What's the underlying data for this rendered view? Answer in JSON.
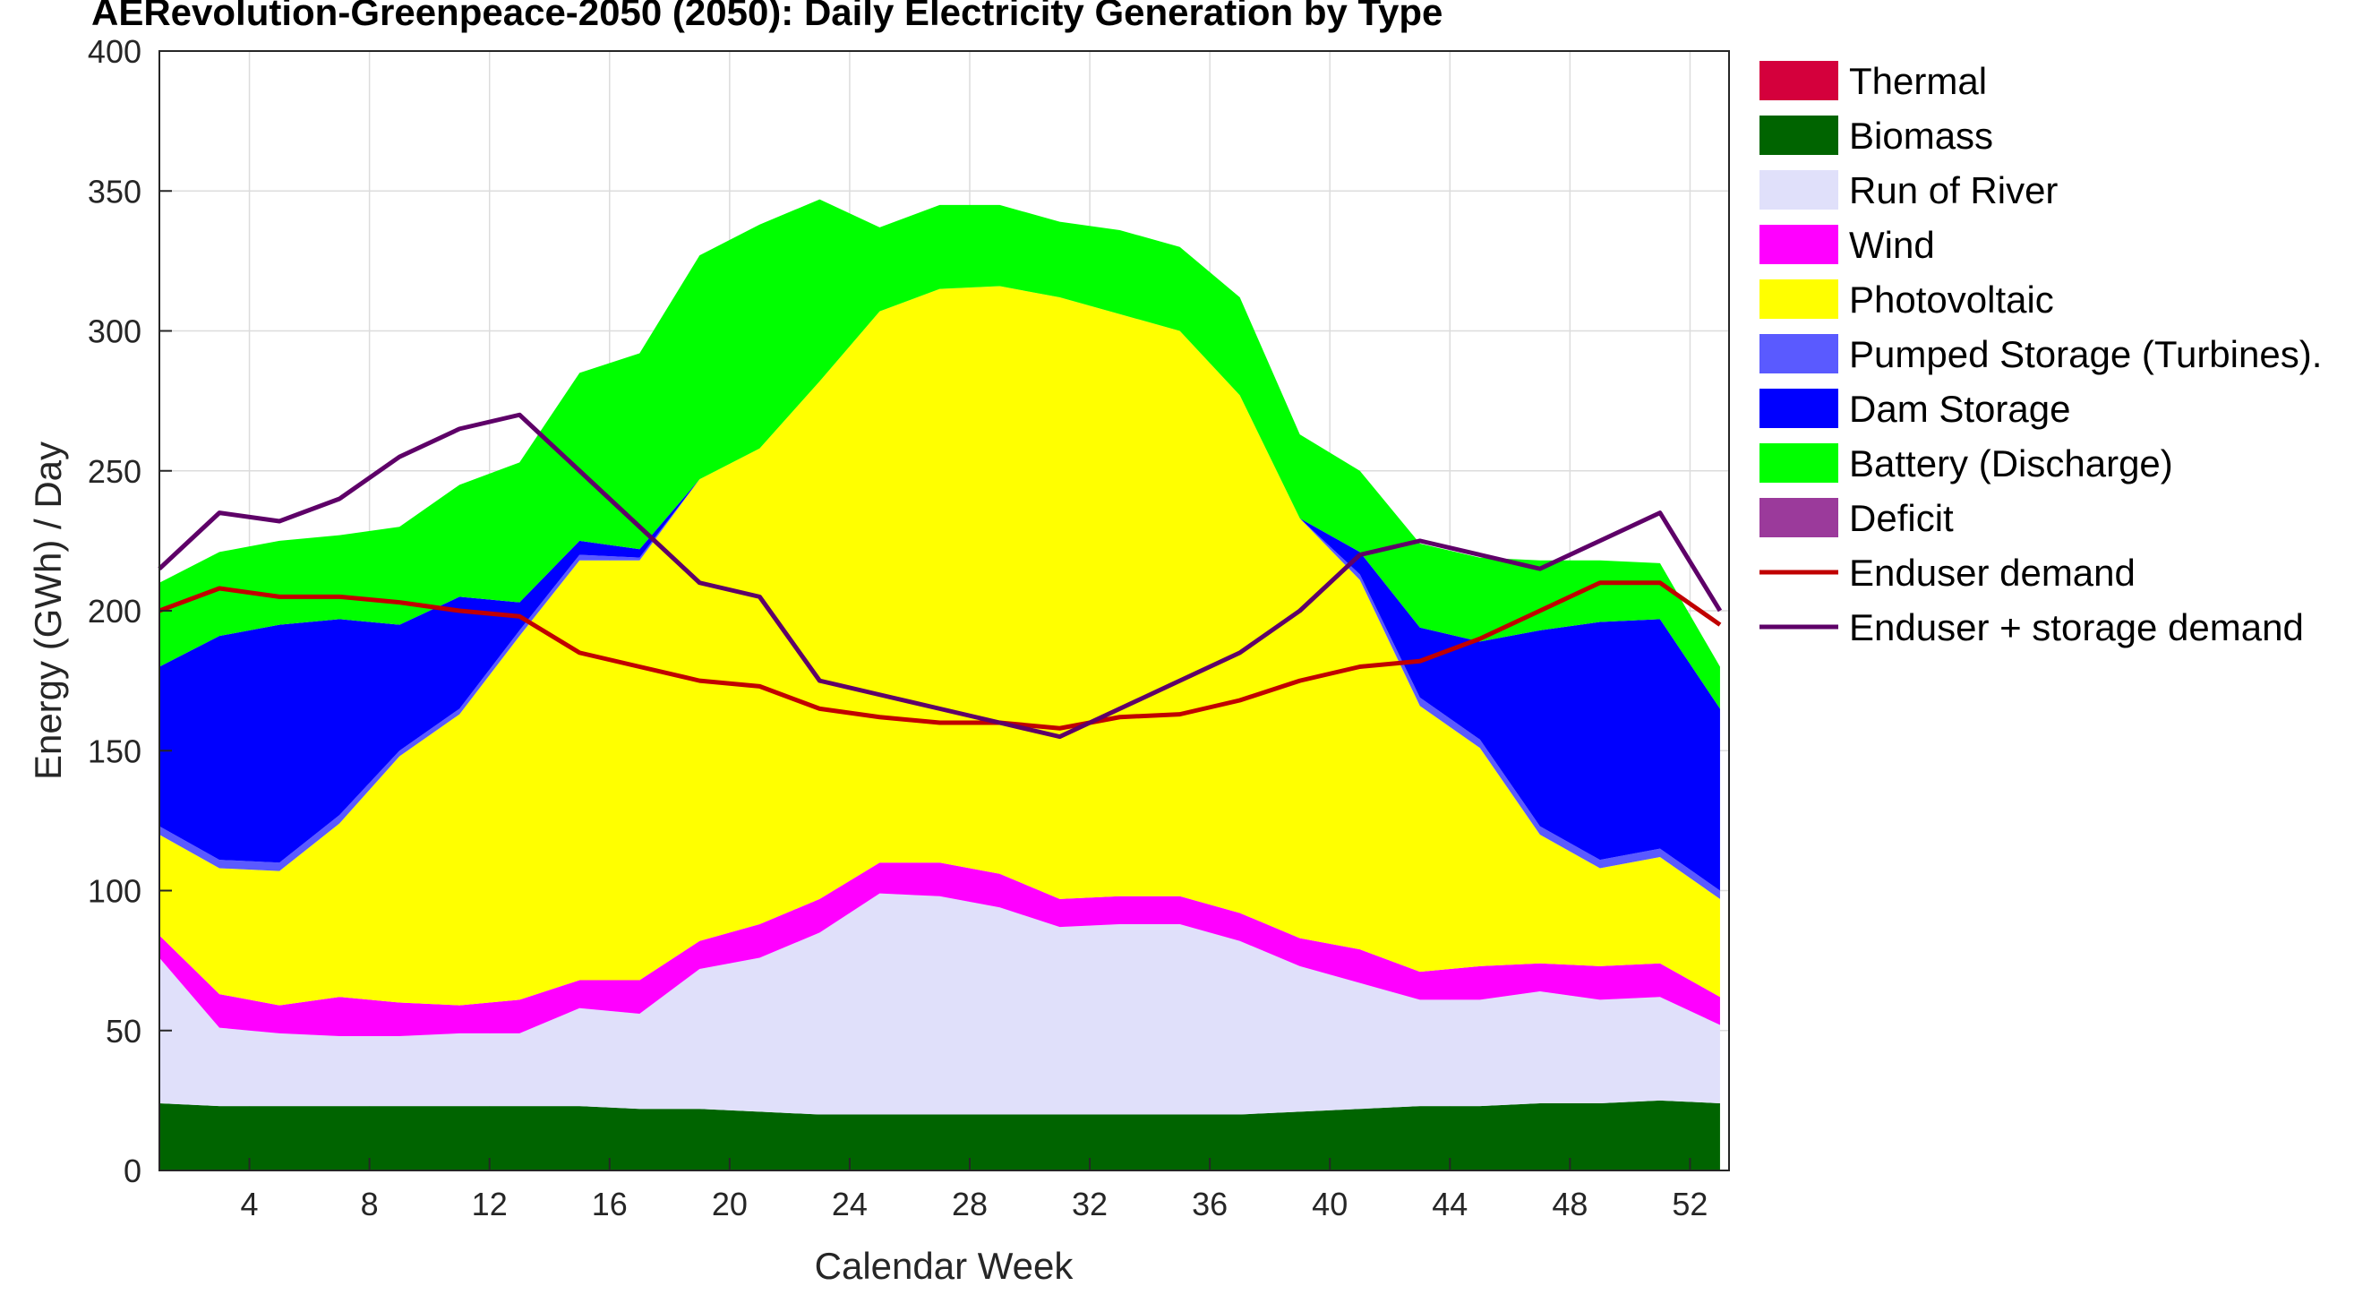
{
  "chart_data": {
    "type": "area",
    "title": "AERevolution-Greenpeace-2050 (2050): Daily Electricity Generation by Type",
    "xlabel": "Calendar Week",
    "ylabel": "Energy (GWh) / Day",
    "xlim": [
      1,
      53.3
    ],
    "ylim": [
      0,
      400
    ],
    "xticks": [
      4,
      8,
      12,
      16,
      20,
      24,
      28,
      32,
      36,
      40,
      44,
      48,
      52
    ],
    "yticks": [
      0,
      50,
      100,
      150,
      200,
      250,
      300,
      350,
      400
    ],
    "grid": true,
    "legend_position": "right",
    "x": [
      1,
      3,
      5,
      7,
      9,
      11,
      13,
      15,
      17,
      19,
      21,
      23,
      25,
      27,
      29,
      31,
      33,
      35,
      37,
      39,
      41,
      43,
      45,
      47,
      49,
      51,
      53
    ],
    "series": [
      {
        "name": "Thermal",
        "kind": "area",
        "color": "#d4003c",
        "values": [
          0,
          0,
          0,
          0,
          0,
          0,
          0,
          0,
          0,
          0,
          0,
          0,
          0,
          0,
          0,
          0,
          0,
          0,
          0,
          0,
          0,
          0,
          0,
          0,
          0,
          0,
          0
        ]
      },
      {
        "name": "Biomass",
        "kind": "area",
        "color": "#006400",
        "values": [
          24,
          23,
          23,
          23,
          23,
          23,
          23,
          23,
          22,
          22,
          21,
          20,
          20,
          20,
          20,
          20,
          20,
          20,
          20,
          21,
          22,
          23,
          23,
          24,
          24,
          25,
          24
        ]
      },
      {
        "name": "Run of River",
        "kind": "area",
        "color": "#e0e0fa",
        "values": [
          52,
          28,
          26,
          25,
          25,
          26,
          26,
          35,
          34,
          50,
          55,
          65,
          79,
          78,
          74,
          67,
          68,
          68,
          62,
          52,
          45,
          38,
          38,
          40,
          37,
          37,
          28
        ]
      },
      {
        "name": "Wind",
        "kind": "area",
        "color": "#ff00ff",
        "values": [
          8,
          12,
          10,
          14,
          12,
          10,
          12,
          10,
          12,
          10,
          12,
          12,
          11,
          12,
          12,
          10,
          10,
          10,
          10,
          10,
          12,
          10,
          12,
          10,
          12,
          12,
          10
        ]
      },
      {
        "name": "Photovoltaic",
        "kind": "area",
        "color": "#ffff00",
        "values": [
          36,
          45,
          48,
          62,
          88,
          104,
          130,
          150,
          150,
          165,
          170,
          185,
          197,
          205,
          210,
          215,
          208,
          202,
          185,
          150,
          132,
          95,
          78,
          46,
          35,
          38,
          35
        ]
      },
      {
        "name": "Pumped Storage (Turbines).",
        "kind": "area",
        "color": "#5a5aff",
        "values": [
          3,
          3,
          3,
          3,
          2,
          2,
          2,
          2,
          1,
          0,
          0,
          0,
          0,
          0,
          0,
          0,
          0,
          0,
          0,
          0,
          2,
          3,
          3,
          3,
          3,
          3,
          3
        ]
      },
      {
        "name": "Dam Storage",
        "kind": "area",
        "color": "#0000ff",
        "values": [
          57,
          80,
          85,
          70,
          45,
          40,
          10,
          5,
          3,
          0,
          0,
          0,
          0,
          0,
          0,
          0,
          0,
          0,
          0,
          0,
          8,
          25,
          35,
          70,
          85,
          82,
          65
        ]
      },
      {
        "name": "Battery (Discharge)",
        "kind": "area",
        "color": "#00ff00",
        "values": [
          30,
          30,
          30,
          30,
          35,
          40,
          50,
          60,
          70,
          80,
          80,
          65,
          30,
          30,
          29,
          27,
          30,
          30,
          35,
          30,
          29,
          30,
          30,
          25,
          22,
          20,
          15
        ]
      },
      {
        "name": "Deficit",
        "kind": "area",
        "color": "#9b3a9b",
        "values": [
          0,
          0,
          0,
          0,
          0,
          0,
          0,
          0,
          0,
          0,
          0,
          0,
          0,
          0,
          0,
          0,
          0,
          0,
          0,
          0,
          0,
          0,
          0,
          0,
          0,
          0,
          0
        ]
      },
      {
        "name": "Enduser demand",
        "kind": "line",
        "color": "#c00000",
        "values": [
          200,
          208,
          205,
          205,
          203,
          200,
          198,
          185,
          180,
          175,
          173,
          165,
          162,
          160,
          160,
          158,
          162,
          163,
          168,
          175,
          180,
          182,
          190,
          200,
          210,
          210,
          195
        ]
      },
      {
        "name": "Enduser + storage demand",
        "kind": "line",
        "color": "#5e0068",
        "values": [
          215,
          235,
          232,
          240,
          255,
          265,
          270,
          250,
          230,
          210,
          205,
          175,
          170,
          165,
          160,
          155,
          165,
          175,
          185,
          200,
          220,
          225,
          220,
          215,
          225,
          235,
          200
        ]
      }
    ]
  }
}
